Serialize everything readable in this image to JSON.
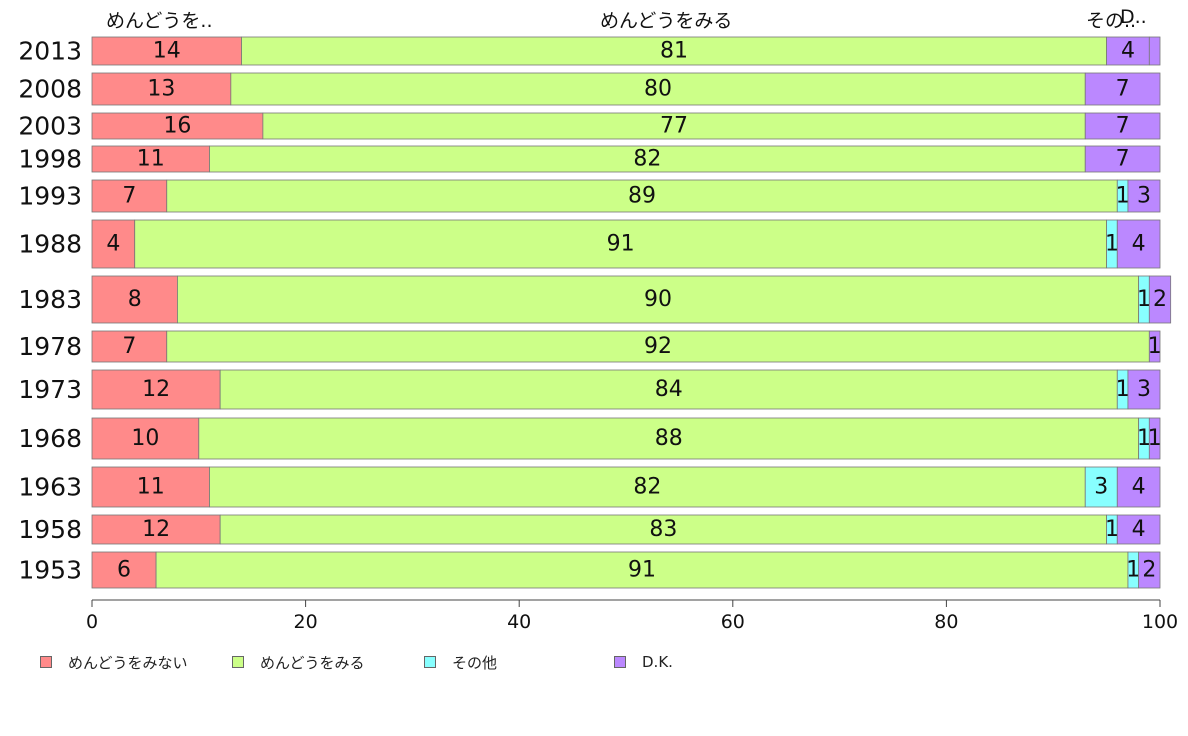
{
  "chart_data": {
    "type": "bar",
    "orientation": "horizontal",
    "stacked": true,
    "categories": [
      "2013",
      "2008",
      "2003",
      "1998",
      "1993",
      "1988",
      "1983",
      "1978",
      "1973",
      "1968",
      "1963",
      "1958",
      "1953"
    ],
    "series": [
      {
        "name": "めんどうをみない",
        "color": "#ff8a8a",
        "values": [
          14,
          13,
          16,
          11,
          7,
          4,
          8,
          7,
          12,
          10,
          11,
          12,
          6
        ]
      },
      {
        "name": "めんどうをみる",
        "color": "#ccff88",
        "values": [
          81,
          80,
          77,
          82,
          89,
          91,
          90,
          92,
          84,
          88,
          82,
          83,
          91
        ]
      },
      {
        "name": "その他",
        "color": "#88ffff",
        "values": [
          0,
          0,
          0,
          0,
          1,
          1,
          1,
          0,
          1,
          1,
          3,
          1,
          1
        ]
      },
      {
        "name": "D.K.",
        "color": "#bb88ff",
        "values": [
          4,
          7,
          7,
          7,
          3,
          4,
          2,
          1,
          3,
          1,
          4,
          4,
          2
        ]
      }
    ],
    "top_labels": [
      "めんどうを..",
      "めんどうをみる",
      "その..",
      "D.."
    ],
    "xlim": [
      0,
      100
    ],
    "xticks": [
      "0",
      "20",
      "40",
      "60",
      "80",
      "100"
    ],
    "xlabel": "",
    "ylabel": "",
    "title": "",
    "legend_position": "bottom-left",
    "grid": false
  }
}
